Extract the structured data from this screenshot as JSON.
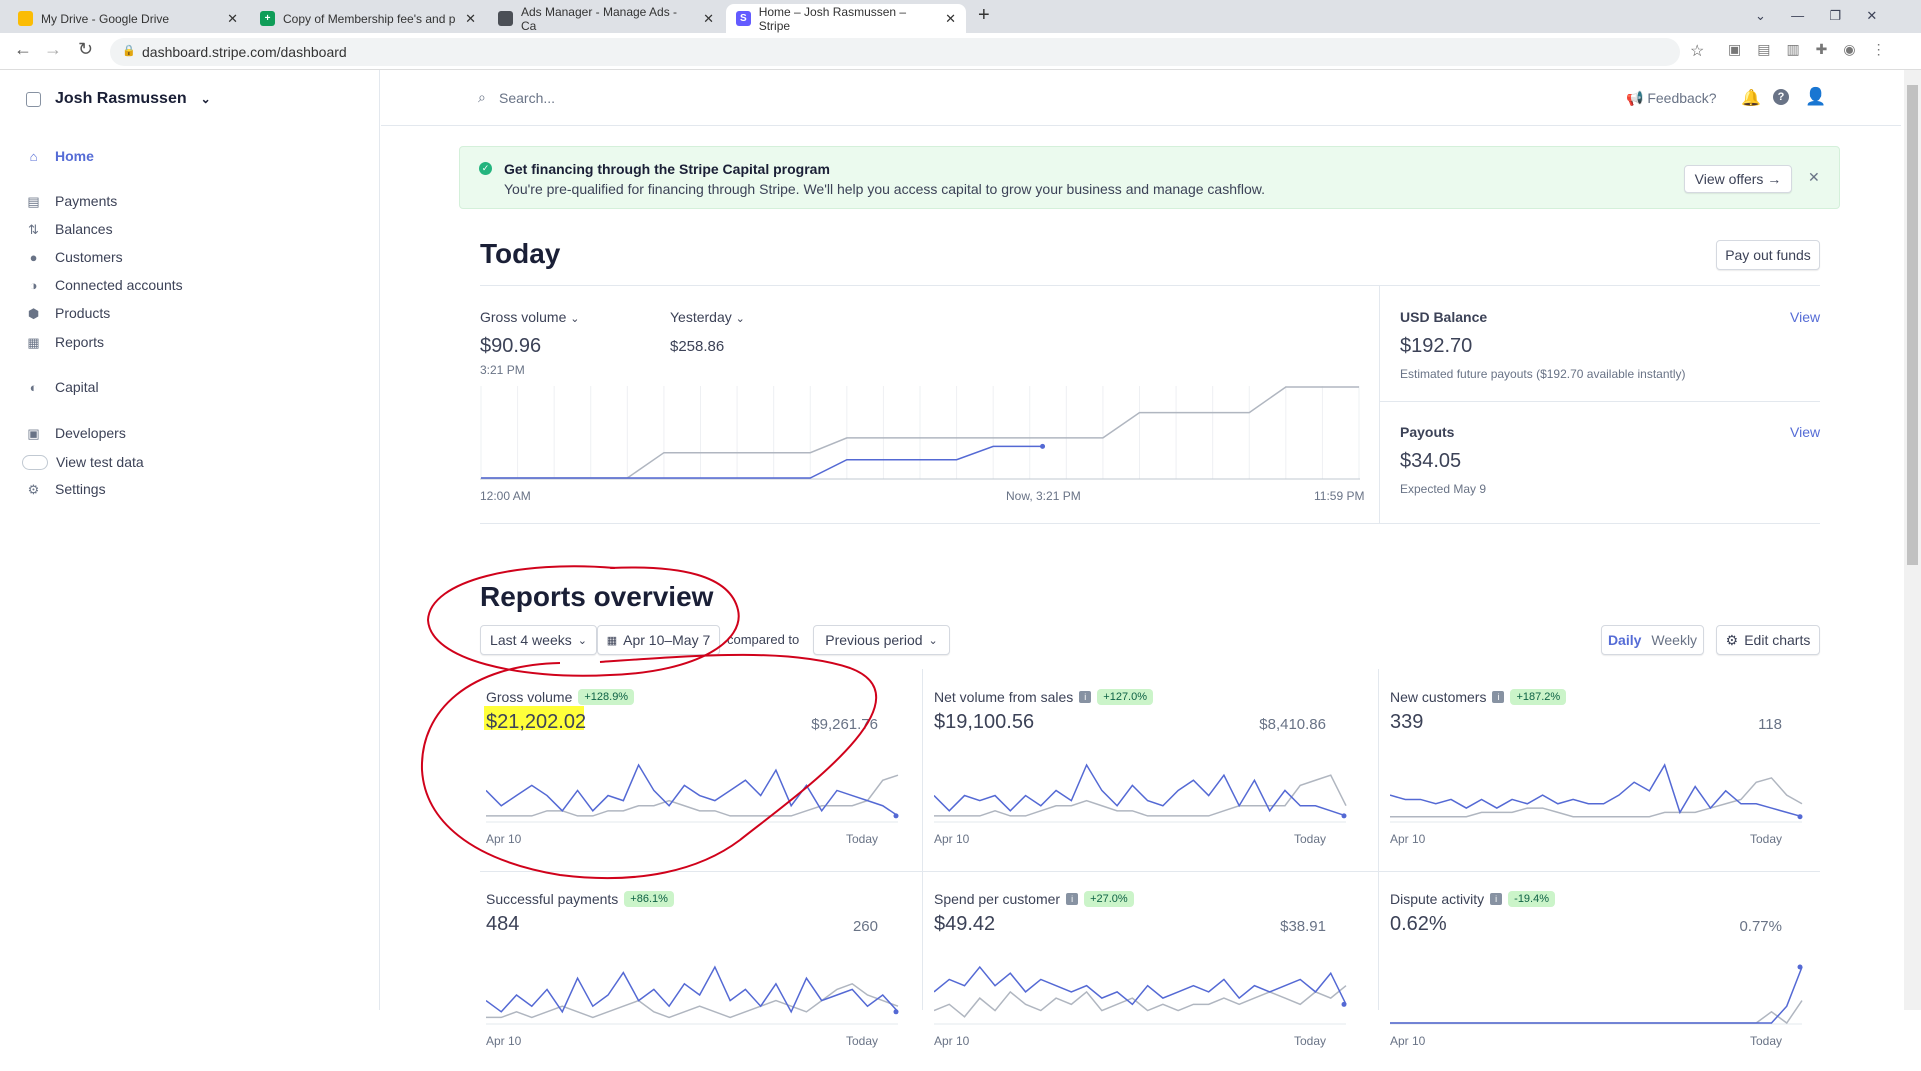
{
  "browser": {
    "tabs": [
      {
        "title": "My Drive - Google Drive",
        "icon": "google-drive-icon",
        "color": "#fbbc04"
      },
      {
        "title": "Copy of Membership fee's and p",
        "icon": "google-sheets-icon",
        "color": "#0f9d58"
      },
      {
        "title": "Ads Manager - Manage Ads - Ca",
        "icon": "ads-manager-icon",
        "color": "#4b4f56"
      },
      {
        "title": "Home – Josh Rasmussen – Stripe",
        "icon": "stripe-icon",
        "color": "#635bff",
        "active": true
      }
    ],
    "favicon_letters": {
      "sheets": "+",
      "stripe": "S"
    },
    "close": "✕",
    "new_tab": "+",
    "url": "dashboard.stripe.com/dashboard"
  },
  "sidebar": {
    "account": "Josh Rasmussen",
    "items": [
      {
        "label": "Home",
        "icon": "home-icon",
        "glyph": "⌂",
        "active": true
      },
      {
        "label": "Payments",
        "icon": "payments-icon",
        "glyph": "▤"
      },
      {
        "label": "Balances",
        "icon": "balances-icon",
        "glyph": "⇅"
      },
      {
        "label": "Customers",
        "icon": "customers-icon",
        "glyph": "●"
      },
      {
        "label": "Connected accounts",
        "icon": "connected-accounts-icon",
        "glyph": "◑"
      },
      {
        "label": "Products",
        "icon": "products-icon",
        "glyph": "⬢"
      },
      {
        "label": "Reports",
        "icon": "reports-icon",
        "glyph": "▦"
      },
      {
        "label": "Capital",
        "icon": "capital-icon",
        "glyph": "◐"
      },
      {
        "label": "Developers",
        "icon": "developers-icon",
        "glyph": "▣"
      },
      {
        "label": "View test data",
        "icon": "toggle",
        "glyph": ""
      },
      {
        "label": "Settings",
        "icon": "settings-icon",
        "glyph": "⚙"
      }
    ]
  },
  "topbar": {
    "search_placeholder": "Search...",
    "feedback": "Feedback?"
  },
  "banner": {
    "title": "Get financing through the Stripe Capital program",
    "text": "You're pre-qualified for financing through Stripe. We'll help you access capital to grow your business and manage cashflow.",
    "button": "View offers →",
    "close": "✕"
  },
  "today": {
    "title": "Today",
    "payout_button": "Pay out funds",
    "metric_label": "Gross volume",
    "metric_value": "$90.96",
    "metric_time": "3:21 PM",
    "compare_label": "Yesterday",
    "compare_value": "$258.86",
    "axis": {
      "start": "12:00 AM",
      "now": "Now, 3:21 PM",
      "end": "11:59 PM"
    },
    "usd_balance": {
      "label": "USD Balance",
      "link": "View",
      "value": "$192.70",
      "desc": "Estimated future payouts ($192.70 available instantly)"
    },
    "payouts": {
      "label": "Payouts",
      "link": "View",
      "value": "$34.05",
      "desc": "Expected May 9"
    }
  },
  "chart_data": [
    {
      "type": "line",
      "title": "Gross volume",
      "x_unit": "hour of day",
      "xlim": [
        0,
        24
      ],
      "ylim": [
        0,
        258.86
      ],
      "series": [
        {
          "name": "Yesterday",
          "color": "#b0b6c0",
          "x": [
            0,
            4,
            5,
            9,
            10,
            17,
            18,
            21,
            22,
            24
          ],
          "y": [
            0,
            0,
            72,
            72,
            114,
            114,
            186,
            186,
            258.86,
            258.86
          ]
        },
        {
          "name": "Today",
          "color": "#5469d4",
          "x": [
            0,
            9,
            10,
            13,
            14,
            15.35
          ],
          "y": [
            0,
            0,
            52,
            52,
            90,
            90
          ]
        }
      ]
    }
  ],
  "reports": {
    "title": "Reports overview",
    "range": "Last 4 weeks",
    "dates": "Apr 10–May 7",
    "compared": "compared to",
    "compare_select": "Previous period",
    "daily": "Daily",
    "weekly": "Weekly",
    "edit": "Edit charts",
    "cards": [
      {
        "title": "Gross volume",
        "info": false,
        "change": "+128.9%",
        "value": "$21,202.02",
        "prev": "$9,261.76",
        "start": "Apr 10",
        "end": "Today",
        "current": [
          6,
          3,
          5,
          7,
          5,
          2,
          6,
          2,
          5,
          4,
          11,
          6,
          3,
          7,
          5,
          4,
          6,
          8,
          5,
          10,
          3,
          7,
          2,
          6,
          5,
          4,
          3,
          1
        ],
        "previous": [
          1,
          1,
          1,
          1,
          2,
          2,
          1,
          1,
          2,
          2,
          3,
          3,
          4,
          3,
          2,
          2,
          1,
          1,
          1,
          1,
          1,
          2,
          3,
          3,
          3,
          4,
          8,
          9
        ]
      },
      {
        "title": "Net volume from sales",
        "info": true,
        "change": "+127.0%",
        "value": "$19,100.56",
        "prev": "$8,410.86",
        "start": "Apr 10",
        "end": "Today",
        "current": [
          5,
          2,
          5,
          4,
          5,
          2,
          5,
          3,
          6,
          4,
          11,
          6,
          3,
          7,
          4,
          3,
          6,
          8,
          5,
          9,
          3,
          8,
          2,
          6,
          3,
          3,
          2,
          1
        ],
        "previous": [
          1,
          1,
          1,
          1,
          2,
          1,
          1,
          2,
          3,
          3,
          4,
          3,
          2,
          2,
          1,
          1,
          1,
          1,
          1,
          2,
          3,
          3,
          3,
          3,
          7,
          8,
          9,
          3
        ]
      },
      {
        "title": "New customers",
        "info": true,
        "change": "+187.2%",
        "value": "339",
        "prev": "118",
        "start": "Apr 10",
        "end": "Today",
        "current": [
          6,
          5,
          5,
          4,
          5,
          3,
          5,
          3,
          5,
          4,
          6,
          4,
          5,
          4,
          4,
          6,
          9,
          7,
          13,
          2,
          8,
          3,
          7,
          4,
          4,
          3,
          2,
          1
        ],
        "previous": [
          1,
          1,
          1,
          1,
          1,
          1,
          2,
          2,
          2,
          3,
          3,
          2,
          1,
          1,
          1,
          1,
          1,
          1,
          2,
          2,
          2,
          3,
          4,
          5,
          9,
          10,
          6,
          4
        ]
      },
      {
        "title": "Successful payments",
        "info": false,
        "change": "+86.1%",
        "value": "484",
        "prev": "260",
        "start": "Apr 10",
        "end": "Today",
        "current": [
          4,
          2,
          5,
          3,
          6,
          2,
          8,
          3,
          5,
          9,
          4,
          6,
          3,
          7,
          5,
          10,
          4,
          6,
          3,
          7,
          2,
          8,
          4,
          5,
          6,
          3,
          5,
          2
        ],
        "previous": [
          1,
          1,
          2,
          1,
          2,
          3,
          2,
          1,
          2,
          3,
          4,
          2,
          1,
          2,
          3,
          2,
          1,
          2,
          3,
          4,
          3,
          2,
          4,
          6,
          7,
          5,
          4,
          3
        ]
      },
      {
        "title": "Spend per customer",
        "info": true,
        "change": "+27.0%",
        "value": "$49.42",
        "prev": "$38.91",
        "start": "Apr 10",
        "end": "Today",
        "current": [
          5,
          7,
          6,
          9,
          6,
          8,
          5,
          7,
          6,
          5,
          6,
          4,
          5,
          3,
          6,
          4,
          5,
          6,
          5,
          7,
          4,
          6,
          5,
          6,
          7,
          5,
          8,
          3
        ],
        "previous": [
          2,
          3,
          1,
          4,
          2,
          5,
          3,
          2,
          4,
          3,
          5,
          2,
          3,
          4,
          2,
          3,
          2,
          3,
          3,
          4,
          3,
          4,
          5,
          4,
          3,
          5,
          4,
          6
        ]
      },
      {
        "title": "Dispute activity",
        "info": true,
        "change": "-19.4%",
        "value": "0.62%",
        "prev": "0.77%",
        "start": "Apr 10",
        "end": "Today",
        "current": [
          0,
          0,
          0,
          0,
          0,
          0,
          0,
          0,
          0,
          0,
          0,
          0,
          0,
          0,
          0,
          0,
          0,
          0,
          0,
          0,
          0,
          0,
          0,
          0,
          0,
          0,
          3,
          10
        ],
        "previous": [
          0,
          0,
          0,
          0,
          0,
          0,
          0,
          0,
          0,
          0,
          0,
          0,
          0,
          0,
          0,
          0,
          0,
          0,
          0,
          0,
          0,
          0,
          0,
          0,
          0,
          2,
          0,
          4
        ]
      }
    ]
  },
  "colors": {
    "accent": "#556cd6",
    "current": "#5469d4",
    "previous": "#b0b6c0",
    "badge": "#cbf4c9",
    "banner": "#ebfaee",
    "annotation": "#d0021b",
    "highlight": "#ffff3a"
  }
}
